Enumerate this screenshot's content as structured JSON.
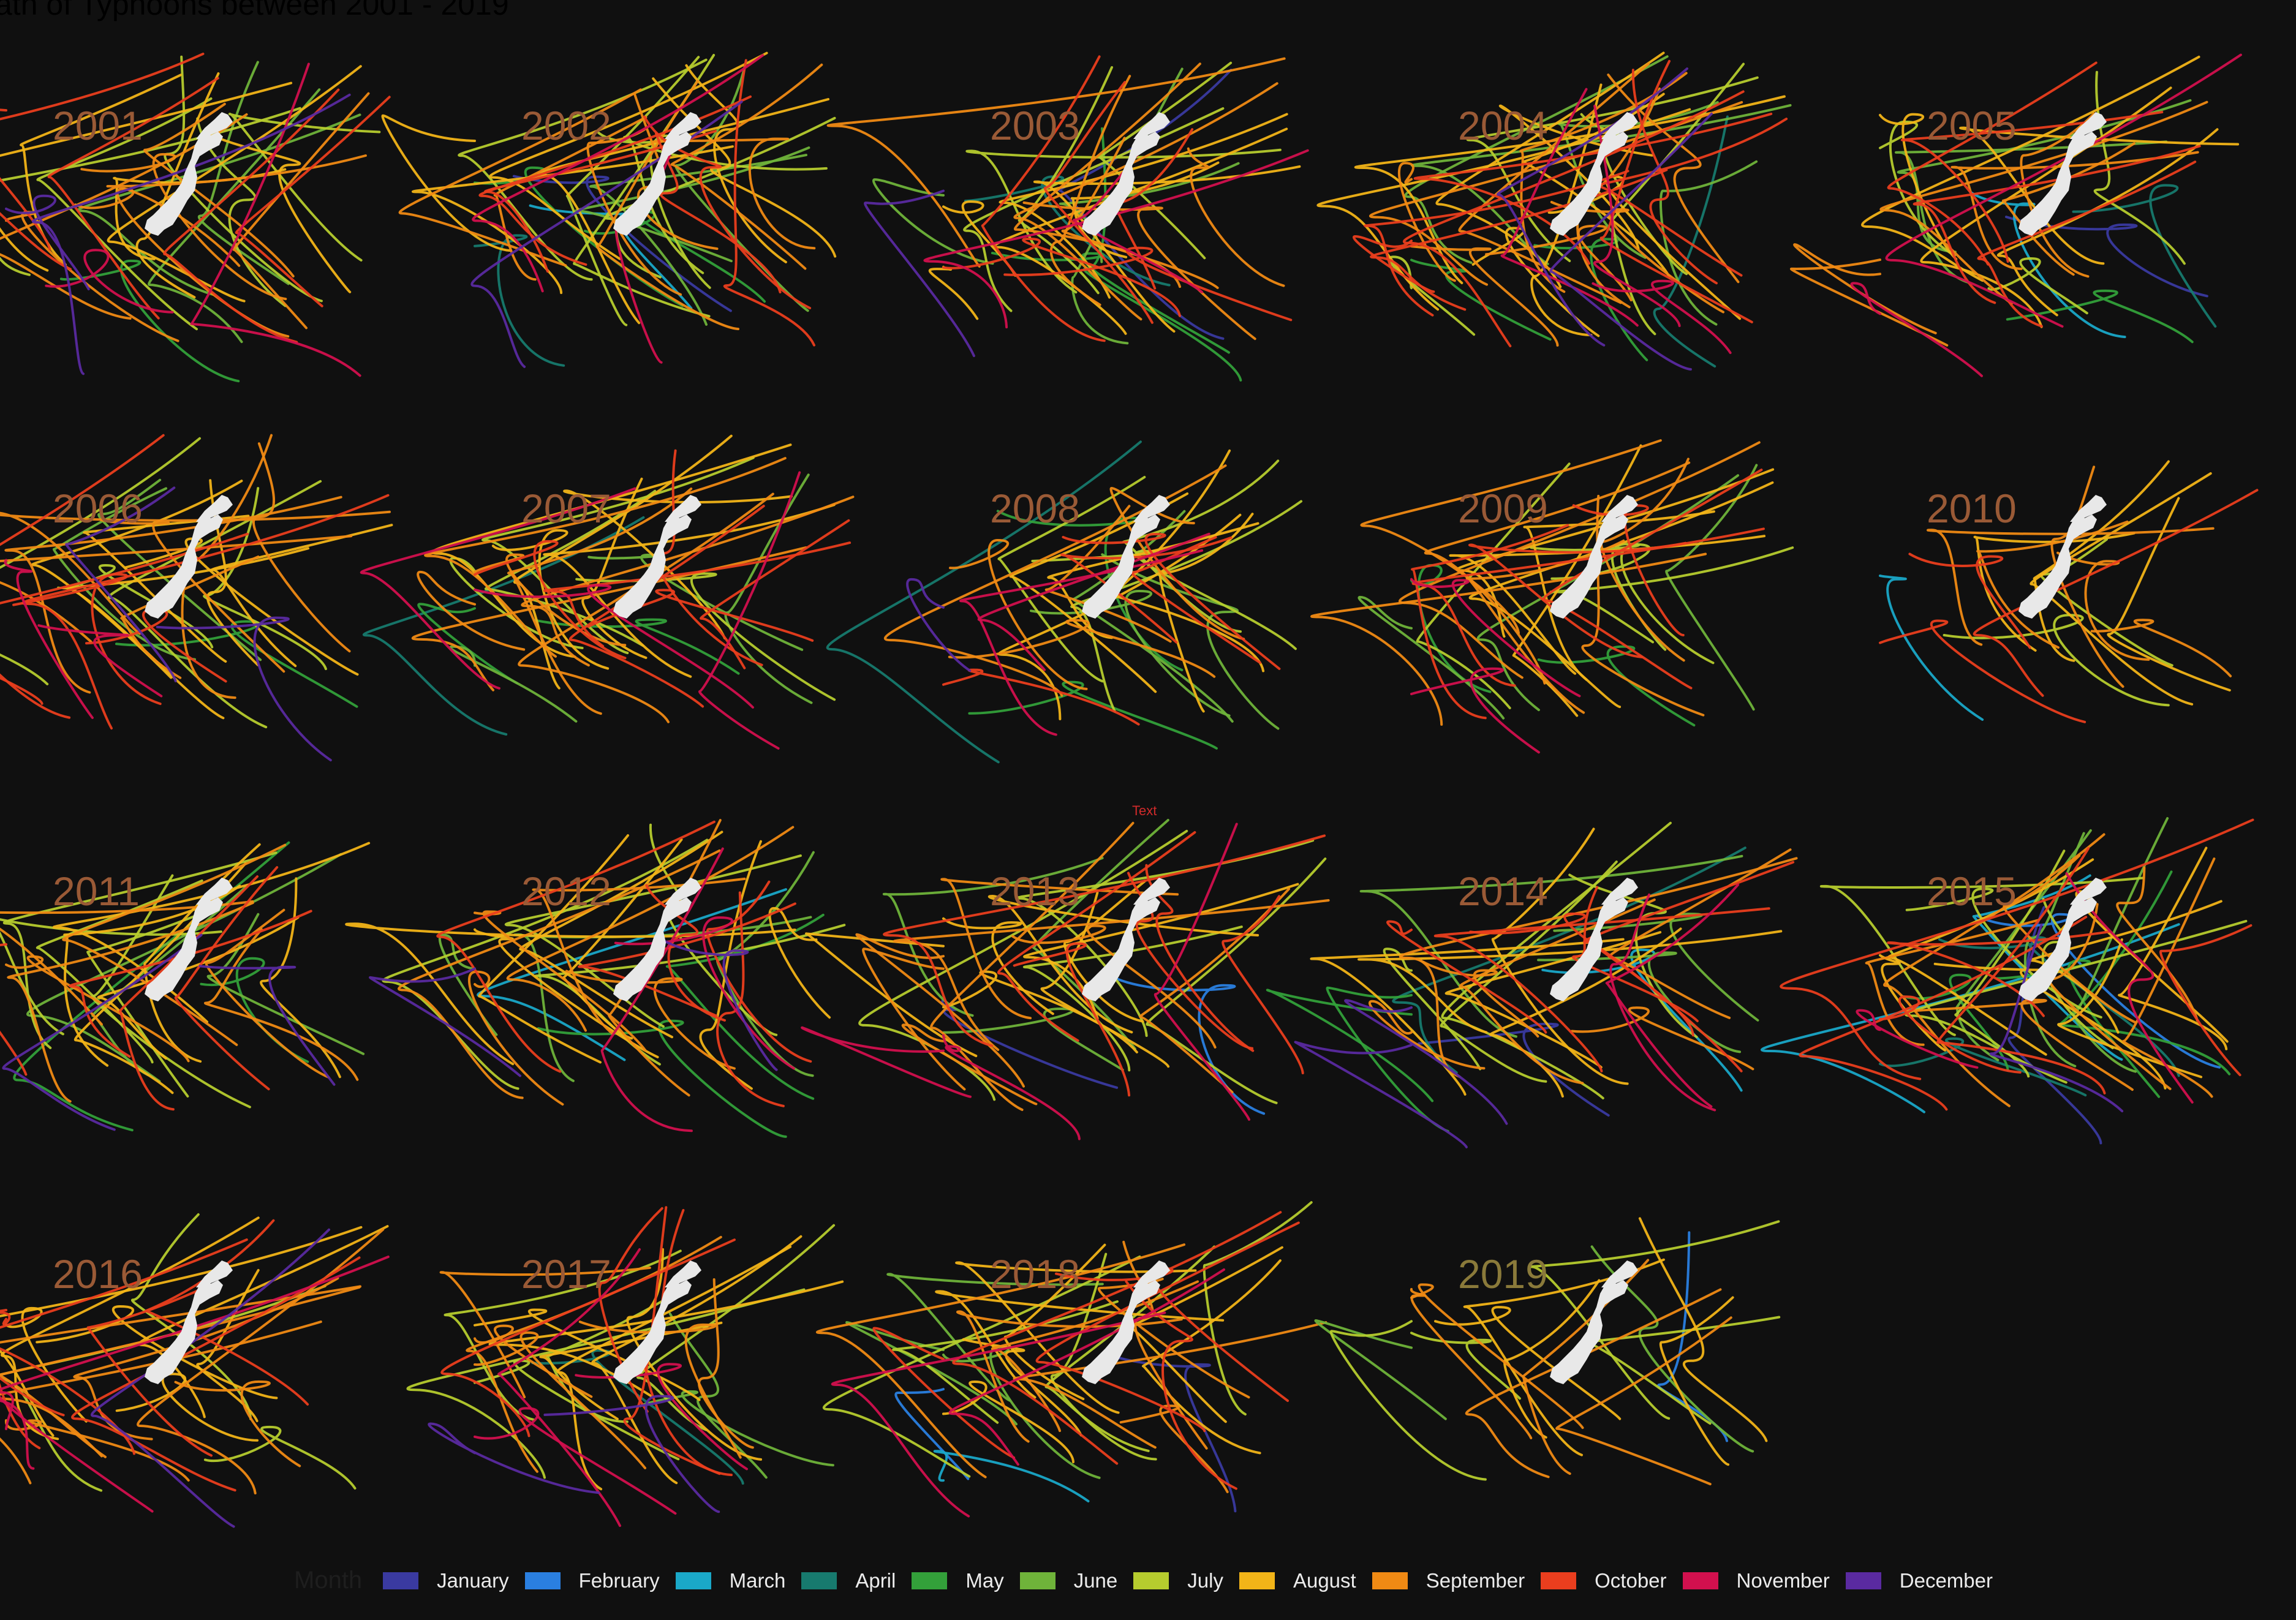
{
  "title": "ath of Typhoons between 2001 - 2019",
  "stray_label": "Text",
  "colors": {
    "background": "#101010",
    "japan": "#e8e8e8",
    "year_label": "#9a5a36"
  },
  "chart_data": {
    "type": "line",
    "description_visible": "small multiples of typhoon tracks, one panel per year, colored by month",
    "panels": [
      {
        "year": "2001",
        "tracks_by_month": {
          "May": 1,
          "June": 3,
          "July": 5,
          "August": 6,
          "September": 7,
          "October": 5,
          "November": 2,
          "December": 2
        }
      },
      {
        "year": "2002",
        "tracks_by_month": {
          "January": 1,
          "March": 1,
          "April": 1,
          "May": 2,
          "June": 3,
          "July": 6,
          "August": 6,
          "September": 7,
          "October": 5,
          "November": 2,
          "December": 1
        }
      },
      {
        "year": "2003",
        "tracks_by_month": {
          "January": 1,
          "April": 1,
          "May": 2,
          "June": 3,
          "July": 4,
          "August": 6,
          "September": 7,
          "October": 5,
          "November": 2,
          "December": 1
        }
      },
      {
        "year": "2004",
        "tracks_by_month": {
          "April": 1,
          "May": 2,
          "June": 4,
          "July": 4,
          "August": 8,
          "September": 9,
          "October": 8,
          "November": 3,
          "December": 2
        }
      },
      {
        "year": "2005",
        "tracks_by_month": {
          "January": 1,
          "March": 1,
          "April": 1,
          "May": 1,
          "June": 2,
          "July": 3,
          "August": 5,
          "September": 6,
          "October": 4,
          "November": 2
        }
      },
      {
        "year": "2006",
        "tracks_by_month": {
          "May": 1,
          "June": 2,
          "July": 4,
          "August": 6,
          "September": 7,
          "October": 5,
          "November": 2,
          "December": 2
        }
      },
      {
        "year": "2007",
        "tracks_by_month": {
          "April": 1,
          "May": 2,
          "June": 3,
          "July": 4,
          "August": 6,
          "September": 7,
          "October": 6,
          "November": 3
        }
      },
      {
        "year": "2008",
        "tracks_by_month": {
          "April": 1,
          "May": 2,
          "June": 3,
          "July": 4,
          "August": 5,
          "September": 5,
          "October": 4,
          "November": 2,
          "December": 1
        }
      },
      {
        "year": "2009",
        "tracks_by_month": {
          "May": 2,
          "June": 3,
          "July": 4,
          "August": 5,
          "September": 7,
          "October": 5,
          "November": 2
        }
      },
      {
        "year": "2010",
        "tracks_by_month": {
          "March": 1,
          "July": 2,
          "August": 4,
          "September": 5,
          "October": 3
        }
      },
      {
        "year": "2011",
        "tracks_by_month": {
          "May": 2,
          "June": 3,
          "July": 5,
          "August": 6,
          "September": 6,
          "October": 4,
          "December": 2
        }
      },
      {
        "year": "2012",
        "tracks_by_month": {
          "March": 1,
          "May": 2,
          "June": 3,
          "July": 4,
          "August": 7,
          "September": 7,
          "October": 5,
          "November": 2,
          "December": 2
        }
      },
      {
        "year": "2013",
        "tracks_by_month": {
          "January": 1,
          "February": 1,
          "June": 3,
          "July": 4,
          "August": 7,
          "September": 8,
          "October": 6,
          "November": 3
        }
      },
      {
        "year": "2014",
        "tracks_by_month": {
          "January": 1,
          "March": 1,
          "April": 1,
          "May": 2,
          "June": 3,
          "July": 4,
          "August": 5,
          "September": 6,
          "October": 5,
          "November": 2,
          "December": 2
        }
      },
      {
        "year": "2015",
        "tracks_by_month": {
          "January": 1,
          "February": 1,
          "March": 2,
          "April": 2,
          "May": 3,
          "June": 3,
          "July": 5,
          "August": 7,
          "September": 7,
          "October": 6,
          "November": 2,
          "December": 1
        }
      },
      {
        "year": "2016",
        "tracks_by_month": {
          "July": 3,
          "August": 7,
          "September": 7,
          "October": 6,
          "November": 2,
          "December": 1
        }
      },
      {
        "year": "2017",
        "tracks_by_month": {
          "April": 1,
          "June": 2,
          "July": 5,
          "August": 6,
          "September": 6,
          "October": 4,
          "November": 3,
          "December": 2
        }
      },
      {
        "year": "2018",
        "tracks_by_month": {
          "January": 1,
          "February": 1,
          "March": 1,
          "June": 3,
          "July": 5,
          "August": 7,
          "September": 7,
          "October": 5,
          "November": 2
        }
      },
      {
        "year": "2019",
        "tracks_by_month": {
          "February": 1,
          "June": 2,
          "July": 4,
          "August": 5,
          "September": 5
        }
      }
    ],
    "legend": {
      "title": "Month",
      "placement": "bottom",
      "items": [
        {
          "label": "January",
          "color": "#3a3aa0"
        },
        {
          "label": "February",
          "color": "#2a7fe0"
        },
        {
          "label": "March",
          "color": "#1aa8c8"
        },
        {
          "label": "April",
          "color": "#177a6e"
        },
        {
          "label": "May",
          "color": "#33a03a"
        },
        {
          "label": "June",
          "color": "#6fb33a"
        },
        {
          "label": "July",
          "color": "#b6cc2e"
        },
        {
          "label": "August",
          "color": "#f2b418"
        },
        {
          "label": "September",
          "color": "#f08a14"
        },
        {
          "label": "October",
          "color": "#ea3e1e"
        },
        {
          "label": "November",
          "color": "#d2104e"
        },
        {
          "label": "December",
          "color": "#5a2aa0"
        }
      ]
    }
  }
}
